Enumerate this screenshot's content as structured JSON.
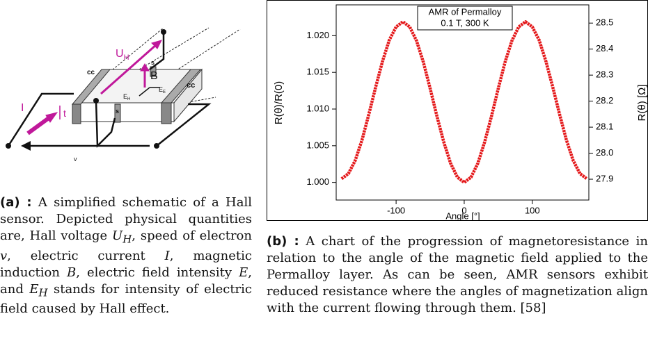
{
  "figure_a": {
    "labels": {
      "uh": "U",
      "uh_sub": "H",
      "b": "B",
      "cc_left": "cc",
      "s_top": "s",
      "eh": "E",
      "eh_sub": "H",
      "ee": "E",
      "ee_sub": "E",
      "cc_right": "cc",
      "s_bottom": "s",
      "i": "I",
      "t": "t",
      "v": "v"
    },
    "caption_tag": "(a) :",
    "caption": [
      "A simplified schematic of a Hall sensor. Depicted physical quantities are, Hall voltage ",
      "U",
      "H",
      ", speed of electron ",
      "v",
      ", electric current ",
      "I",
      ", magnetic induction ",
      "B",
      ", electric field intensity ",
      "E",
      ", and ",
      "E",
      "H",
      " stands for intensity of electric field caused by Hall effect."
    ]
  },
  "chart_data": {
    "type": "line",
    "title": "AMR of Permalloy",
    "subtitle": "0.1 T, 300 K",
    "xlabel": "Angle [°]",
    "ylabel": "R(θ)/R(0)",
    "y2label": "R(θ) [Ω]",
    "x": [
      -180,
      -170,
      -160,
      -150,
      -140,
      -130,
      -120,
      -110,
      -100,
      -90,
      -80,
      -70,
      -60,
      -50,
      -40,
      -30,
      -20,
      -10,
      0,
      10,
      20,
      30,
      40,
      50,
      60,
      70,
      80,
      90,
      100,
      110,
      120,
      130,
      140,
      150,
      160,
      170,
      180
    ],
    "series": [
      {
        "color": "#e41a1c",
        "values": [
          1.0005,
          1.0012,
          1.003,
          1.0058,
          1.0093,
          1.013,
          1.0165,
          1.0194,
          1.0212,
          1.0219,
          1.0212,
          1.0193,
          1.0164,
          1.0128,
          1.009,
          1.0055,
          1.0026,
          1.0007,
          1.0,
          1.0007,
          1.0026,
          1.0055,
          1.009,
          1.0128,
          1.0164,
          1.0193,
          1.0212,
          1.0219,
          1.0212,
          1.0194,
          1.0165,
          1.013,
          1.0093,
          1.0058,
          1.003,
          1.0012,
          1.0005
        ]
      }
    ],
    "xlim": [
      -188,
      183
    ],
    "xticks": [
      -100,
      0,
      100
    ],
    "ylim": [
      0.9976,
      1.0242
    ],
    "yticks": [
      {
        "value": 1.0,
        "label": "1.000"
      },
      1.005,
      {
        "value": 1.01,
        "label": "1.010"
      },
      1.015,
      {
        "value": 1.02,
        "label": "1.020"
      }
    ],
    "y2lim": [
      27.82,
      28.57
    ],
    "y2ticks": [
      27.9,
      {
        "value": 28.0,
        "label": "28.0"
      },
      28.1,
      28.2,
      28.3,
      28.4,
      28.5
    ]
  },
  "figure_b": {
    "caption_tag": "(b) :",
    "caption": "A chart of the progression of magnetoresistance in relation to the angle of the magnetic field applied to the Permalloy layer. As can be seen, AMR sensors exhibit reduced resistance where the angles of magnetization align with the current flowing through them. [58]"
  }
}
